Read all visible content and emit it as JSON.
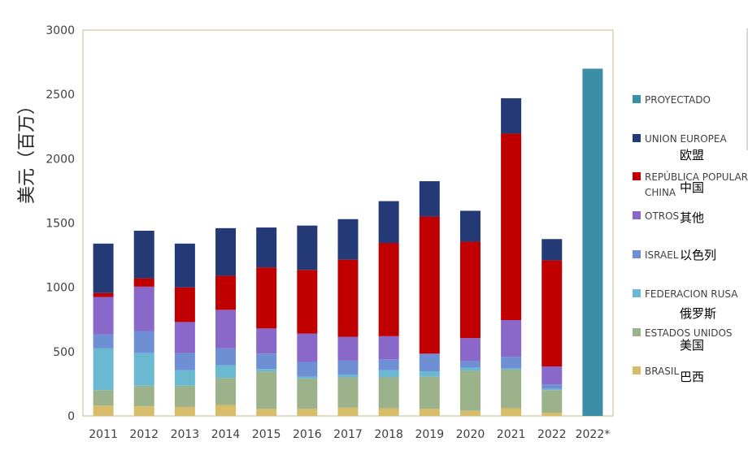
{
  "chart_data": {
    "type": "bar",
    "stacked": true,
    "ylabel": "美元（百万）",
    "ylim": [
      0,
      3000
    ],
    "yticks": [
      0,
      500,
      1000,
      1500,
      2000,
      2500,
      3000
    ],
    "categories": [
      "2011",
      "2012",
      "2013",
      "2014",
      "2015",
      "2016",
      "2017",
      "2018",
      "2019",
      "2020",
      "2021",
      "2022",
      "2022*"
    ],
    "series": [
      {
        "name": "BRASIL",
        "name_zh": "巴西",
        "color": "#d7bd6a",
        "values": [
          80,
          75,
          70,
          85,
          55,
          55,
          65,
          60,
          55,
          40,
          60,
          25,
          0
        ]
      },
      {
        "name": "ESTADOS UNIDOS",
        "name_zh": "美国",
        "color": "#9bb28a",
        "values": [
          120,
          160,
          165,
          210,
          290,
          235,
          235,
          240,
          250,
          310,
          300,
          175,
          0
        ]
      },
      {
        "name": "FEDERACION RUSA",
        "name_zh": "俄罗斯",
        "color": "#6bb8d1",
        "values": [
          325,
          255,
          120,
          100,
          20,
          15,
          20,
          55,
          40,
          25,
          10,
          10,
          0
        ]
      },
      {
        "name": "ISRAEL",
        "name_zh": "以色列",
        "color": "#6e8fd4",
        "values": [
          110,
          170,
          135,
          130,
          120,
          115,
          110,
          85,
          135,
          50,
          90,
          35,
          0
        ]
      },
      {
        "name": "OTROS",
        "name_zh": "其他",
        "color": "#8a68c9",
        "values": [
          290,
          345,
          240,
          300,
          195,
          220,
          185,
          180,
          5,
          180,
          285,
          140,
          0
        ]
      },
      {
        "name": "REPÚBLICA POPULAR CHINA",
        "name_zh": "中国",
        "color": "#c00000",
        "values": [
          30,
          65,
          270,
          265,
          475,
          495,
          600,
          725,
          1065,
          750,
          1450,
          825,
          0
        ]
      },
      {
        "name": "UNION EUROPEA",
        "name_zh": "欧盟",
        "color": "#233a77",
        "values": [
          385,
          370,
          340,
          370,
          310,
          345,
          315,
          325,
          275,
          240,
          275,
          165,
          0
        ]
      },
      {
        "name": "PROYECTADO",
        "name_zh": "",
        "color": "#3c8ea8",
        "values": [
          0,
          0,
          0,
          0,
          0,
          0,
          0,
          0,
          0,
          0,
          0,
          0,
          2700
        ]
      }
    ]
  },
  "legend": [
    {
      "key": "proyectado",
      "label": "PROYECTADO",
      "label2": "",
      "zh": "",
      "color": "#3c8ea8"
    },
    {
      "key": "union-europea",
      "label": "UNION EUROPEA",
      "label2": "",
      "zh": "欧盟",
      "color": "#233a77"
    },
    {
      "key": "china",
      "label": "REPÚBLICA POPULAR",
      "label2": "CHINA",
      "zh": "中国",
      "color": "#c00000"
    },
    {
      "key": "otros",
      "label": "OTROS",
      "label2": "",
      "zh": "其他",
      "color": "#8a68c9"
    },
    {
      "key": "israel",
      "label": "ISRAEL",
      "label2": "",
      "zh": "以色列",
      "color": "#6e8fd4"
    },
    {
      "key": "federacion-rusa",
      "label": "FEDERACION RUSA",
      "label2": "",
      "zh": "俄罗斯",
      "color": "#6bb8d1"
    },
    {
      "key": "estados-unidos",
      "label": "ESTADOS UNIDOS",
      "label2": "",
      "zh": "美国",
      "color": "#9bb28a"
    },
    {
      "key": "brasil",
      "label": "BRASIL",
      "label2": "",
      "zh": "巴西",
      "color": "#d7bd6a"
    }
  ]
}
